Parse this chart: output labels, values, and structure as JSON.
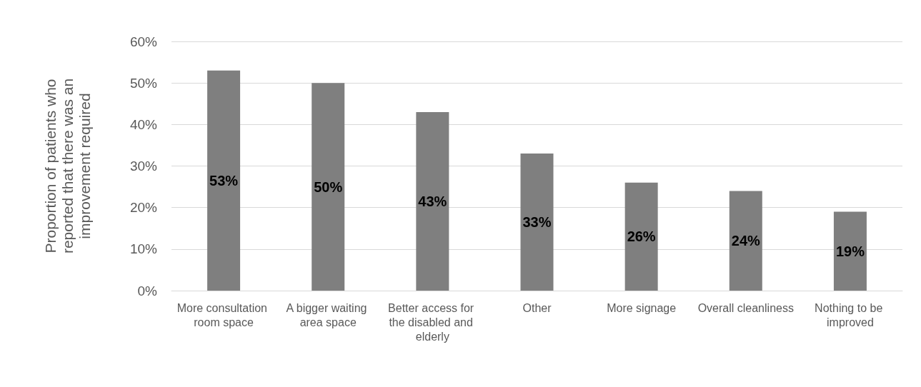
{
  "chart_data": {
    "type": "bar",
    "ylabel": "Proportion of patients who reported that there was an improvement required",
    "categories": [
      "More consultation room space",
      "A bigger waiting area space",
      "Better access for the disabled and elderly",
      "Other",
      "More signage",
      "Overall cleanliness",
      "Nothing to be improved"
    ],
    "values": [
      53,
      50,
      43,
      33,
      26,
      24,
      19
    ],
    "value_labels": [
      "53%",
      "50%",
      "43%",
      "33%",
      "26%",
      "24%",
      "19%"
    ],
    "color": "#7f7f7f",
    "ylim": [
      0,
      60
    ],
    "yticks": [
      {
        "value": 0,
        "label": "0%"
      },
      {
        "value": 10,
        "label": "10%"
      },
      {
        "value": 20,
        "label": "20%"
      },
      {
        "value": 30,
        "label": "30%"
      },
      {
        "value": 40,
        "label": "40%"
      },
      {
        "value": 50,
        "label": "50%"
      },
      {
        "value": 60,
        "label": "60%"
      }
    ],
    "grid": "y"
  }
}
